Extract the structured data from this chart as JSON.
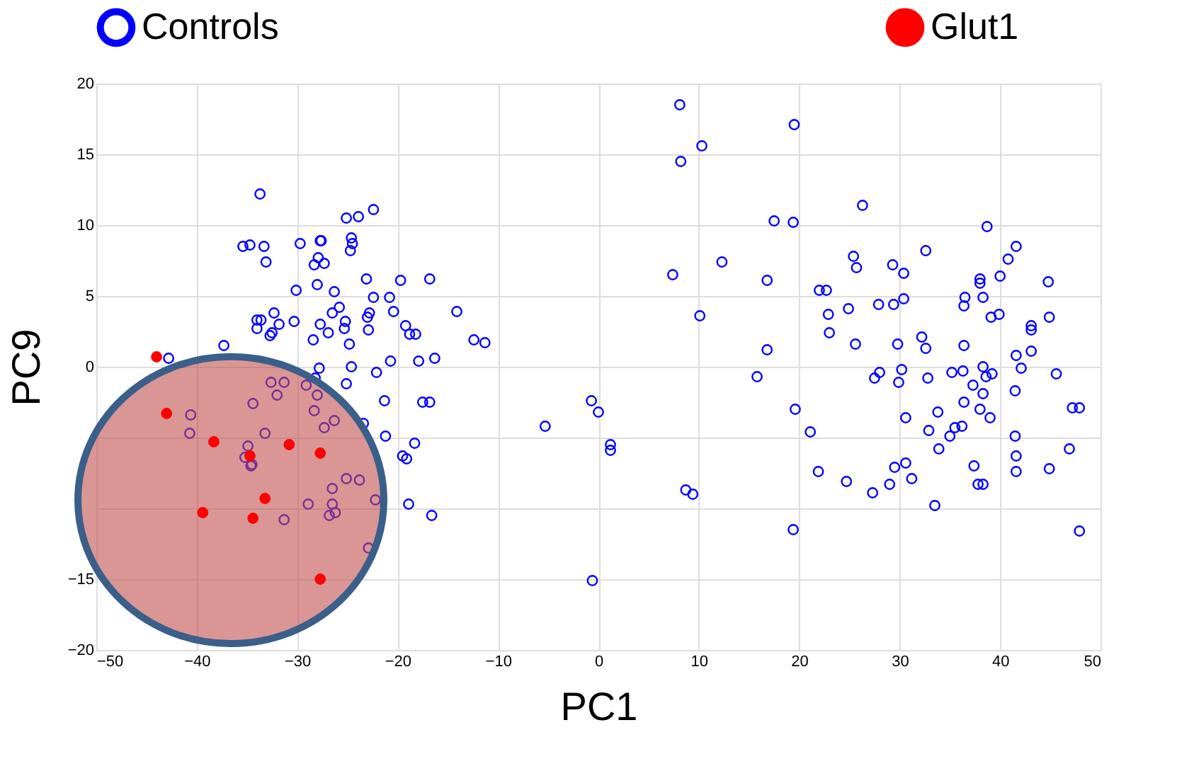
{
  "chart_data": {
    "type": "scatter",
    "xlabel": "PC1",
    "ylabel": "PC9",
    "xlim": [
      -50,
      50
    ],
    "ylim": [
      -20,
      20
    ],
    "xticks": [
      -50,
      -40,
      -30,
      -20,
      -10,
      0,
      10,
      20,
      30,
      40,
      50
    ],
    "yticks": [
      -20,
      -15,
      {
        "value": -10,
        "label": null
      },
      {
        "value": -5,
        "label": null
      },
      0,
      5,
      10,
      15,
      20
    ],
    "grid": true,
    "legend": "top",
    "marker": "circle",
    "series": [
      {
        "name": "Controls",
        "color": "#0000ff",
        "x": [
          -33.7,
          -35.4,
          -34.7,
          -33.3,
          -33.1,
          -29.7,
          -27.7,
          -27.6,
          -27.9,
          -28.3,
          -27.3,
          -25.1,
          -23.9,
          -22.4,
          -24.6,
          -24.5,
          -24.7,
          -30.1,
          -28.0,
          -26.3,
          -23.1,
          -19.7,
          -16.8,
          -22.4,
          -20.8,
          -25.8,
          -26.5,
          -25.2,
          -25.3,
          -23.0,
          -22.8,
          -20.4,
          -14.1,
          -32.3,
          -30.3,
          -34.0,
          -33.6,
          -31.8,
          -27.7,
          -26.9,
          -22.9,
          -19.2,
          -18.8,
          -18.2,
          -24.8,
          -28.4,
          -32.7,
          -32.5,
          -34.0,
          -12.4,
          -11.3,
          -37.3,
          -42.8,
          -24.6,
          -20.7,
          -17.9,
          -16.3,
          -27.8,
          -22.1,
          -32.6,
          -31.3,
          -28.2,
          -29.1,
          -28.0,
          -32.0,
          -25.1,
          -34.4,
          -28.3,
          -26.3,
          -27.3,
          -23.4,
          -40.6,
          -40.7,
          -33.2,
          -34.9,
          -35.2,
          -34.5,
          -34.6,
          -21.3,
          -17.5,
          -16.8,
          -21.2,
          -18.3,
          -19.5,
          -19.1,
          -26.5,
          -25.1,
          -23.8,
          -22.2,
          -18.9,
          -16.6,
          -28.9,
          -26.5,
          -26.8,
          -26.2,
          -31.3,
          -22.9,
          8.1,
          10.3,
          8.2,
          19.5,
          17.5,
          12.3,
          7.4,
          16.8,
          10.1,
          16.8,
          15.8,
          -0.7,
          0.0,
          -5.3,
          1.2,
          1.2,
          8.7,
          9.4,
          -0.6,
          19.4,
          26.3,
          38.7,
          25.4,
          25.7,
          32.6,
          29.3,
          30.4,
          41.6,
          40.8,
          40.0,
          38.0,
          38.0,
          44.8,
          22.0,
          22.7,
          27.9,
          29.4,
          30.4,
          24.9,
          22.9,
          36.5,
          36.4,
          38.3,
          39.1,
          39.9,
          44.9,
          43.1,
          43.1,
          23.0,
          25.6,
          29.8,
          32.2,
          32.6,
          36.4,
          41.6,
          43.1,
          42.1,
          45.6,
          38.3,
          38.6,
          39.2,
          36.3,
          35.2,
          30.2,
          29.9,
          28.0,
          27.5,
          32.8,
          37.3,
          38.3,
          41.5,
          19.6,
          36.4,
          33.8,
          30.6,
          38.0,
          39.0,
          47.2,
          47.9,
          21.1,
          32.9,
          35.5,
          36.2,
          35.0,
          41.5,
          33.9,
          41.6,
          46.9,
          21.9,
          30.6,
          29.5,
          24.7,
          29.0,
          31.2,
          27.3,
          37.4,
          37.8,
          38.3,
          41.6,
          44.9,
          33.5,
          19.4,
          47.9
        ],
        "values": [
          12.2,
          8.5,
          8.6,
          8.5,
          7.4,
          8.7,
          8.9,
          8.9,
          7.7,
          7.2,
          7.3,
          10.5,
          10.6,
          11.1,
          9.1,
          8.7,
          8.2,
          5.4,
          5.8,
          5.3,
          6.2,
          6.1,
          6.2,
          4.9,
          4.9,
          4.2,
          3.8,
          3.2,
          2.7,
          3.5,
          3.8,
          3.9,
          3.9,
          3.8,
          3.2,
          3.3,
          3.3,
          3.0,
          3.0,
          2.4,
          2.6,
          2.9,
          2.3,
          2.3,
          1.6,
          1.9,
          2.2,
          2.4,
          2.7,
          1.9,
          1.7,
          1.5,
          0.6,
          0.0,
          0.4,
          0.4,
          0.6,
          -0.1,
          -0.4,
          -1.1,
          -1.1,
          -0.8,
          -1.3,
          -2.0,
          -2.0,
          -1.2,
          -2.6,
          -3.1,
          -3.8,
          -4.3,
          -4.0,
          -3.4,
          -4.7,
          -4.7,
          -5.6,
          -6.4,
          -6.9,
          -7.0,
          -2.4,
          -2.5,
          -2.5,
          -4.9,
          -5.4,
          -6.3,
          -6.5,
          -8.6,
          -7.9,
          -8.0,
          -9.4,
          -9.7,
          -10.5,
          -9.7,
          -9.7,
          -10.5,
          -10.3,
          -10.8,
          -12.8,
          18.5,
          15.6,
          14.5,
          17.1,
          10.3,
          7.4,
          6.5,
          6.1,
          3.6,
          1.2,
          -0.7,
          -2.4,
          -3.2,
          -4.2,
          -5.5,
          -5.9,
          -8.7,
          -9.0,
          -15.1,
          10.2,
          11.4,
          9.9,
          7.8,
          7.0,
          8.2,
          7.2,
          6.6,
          8.5,
          7.6,
          6.4,
          6.2,
          5.9,
          6.0,
          5.4,
          5.4,
          4.4,
          4.4,
          4.8,
          4.1,
          3.7,
          4.9,
          4.3,
          4.9,
          3.5,
          3.7,
          3.5,
          2.9,
          2.6,
          2.4,
          1.6,
          1.6,
          2.1,
          1.3,
          1.5,
          0.8,
          1.1,
          -0.1,
          -0.5,
          0.0,
          -0.7,
          -0.5,
          -0.3,
          -0.4,
          -0.2,
          -1.1,
          -0.4,
          -0.8,
          -0.8,
          -1.3,
          -1.9,
          -1.7,
          -3.0,
          -2.5,
          -3.2,
          -3.6,
          -3.0,
          -3.6,
          -2.9,
          -2.9,
          -4.6,
          -4.5,
          -4.3,
          -4.2,
          -4.9,
          -4.9,
          -5.8,
          -6.3,
          -5.8,
          -7.4,
          -6.8,
          -7.1,
          -8.1,
          -8.3,
          -7.9,
          -8.9,
          -7.0,
          -8.3,
          -8.3,
          -7.4,
          -7.2,
          -9.8,
          -11.5,
          -11.6
        ]
      },
      {
        "name": "Glut1",
        "color": "#ff0000",
        "x": [
          -44.0,
          -43.0,
          -38.3,
          -30.8,
          -34.7,
          -27.7,
          -33.2,
          -39.4,
          -34.4,
          -27.7
        ],
        "values": [
          0.7,
          -3.3,
          -5.3,
          -5.5,
          -6.3,
          -6.1,
          -9.3,
          -10.3,
          -10.7,
          -15.0
        ]
      }
    ]
  }
}
